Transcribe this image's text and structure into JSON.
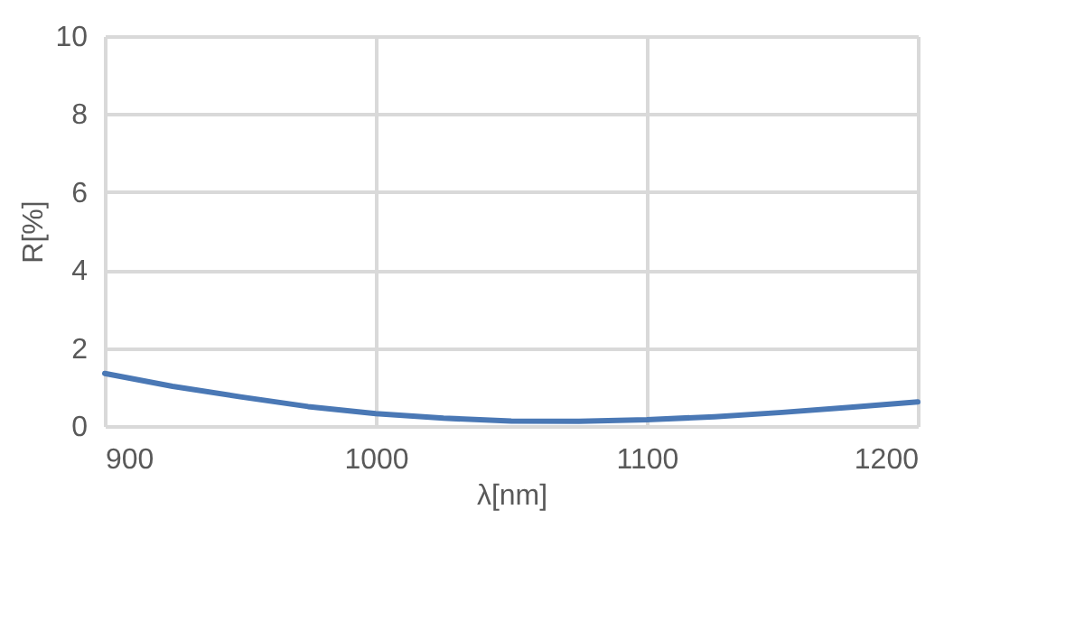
{
  "chart_data": {
    "type": "line",
    "xlabel": "λ[nm]",
    "ylabel": "R[%]",
    "x": [
      900,
      925,
      950,
      975,
      1000,
      1025,
      1050,
      1075,
      1100,
      1125,
      1150,
      1175,
      1200
    ],
    "series": [
      {
        "color": "#4a78b5",
        "values": [
          1.35,
          1.02,
          0.75,
          0.5,
          0.32,
          0.2,
          0.13,
          0.12,
          0.16,
          0.24,
          0.35,
          0.48,
          0.62
        ]
      }
    ],
    "xlim": [
      900,
      1200
    ],
    "xticks": [
      900,
      1000,
      1100,
      1200
    ],
    "ylim": [
      0,
      10
    ],
    "yticks": [
      0,
      2,
      4,
      6,
      8,
      10
    ],
    "grid": true,
    "marker": "none",
    "line_style": "solid"
  }
}
